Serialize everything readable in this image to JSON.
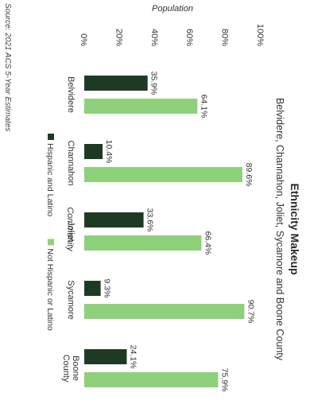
{
  "chart_data": {
    "type": "bar",
    "title": "Ethnicity Makeup",
    "subtitle": "Belvidere, Channahon, Joliet, Sycamore and Boone County",
    "xlabel": "Community",
    "ylabel": "Population",
    "categories": [
      "Belvidere",
      "Channahon",
      "Joliet",
      "Sycamore",
      "Boone County"
    ],
    "series": [
      {
        "name": "Hispanic and Latino",
        "values": [
          35.9,
          10.4,
          33.6,
          9.3,
          24.1
        ],
        "labels": [
          "35.9%",
          "10.4%",
          "33.6%",
          "9.3%",
          "24.1%"
        ],
        "color": "#1f3a24"
      },
      {
        "name": "Not Hispanic or Latino",
        "values": [
          64.1,
          89.6,
          66.4,
          90.7,
          75.9
        ],
        "labels": [
          "64.1%",
          "89.6%",
          "66.4%",
          "90.7%",
          "75.9%"
        ],
        "color": "#8fd17a"
      }
    ],
    "ylim": [
      0,
      100
    ],
    "yticks": [
      "0%",
      "20%",
      "40%",
      "60%",
      "80%",
      "100%"
    ],
    "grid": false,
    "legend_position": "bottom",
    "source": "Source: 2021 ACS 5-Year Estimates"
  }
}
